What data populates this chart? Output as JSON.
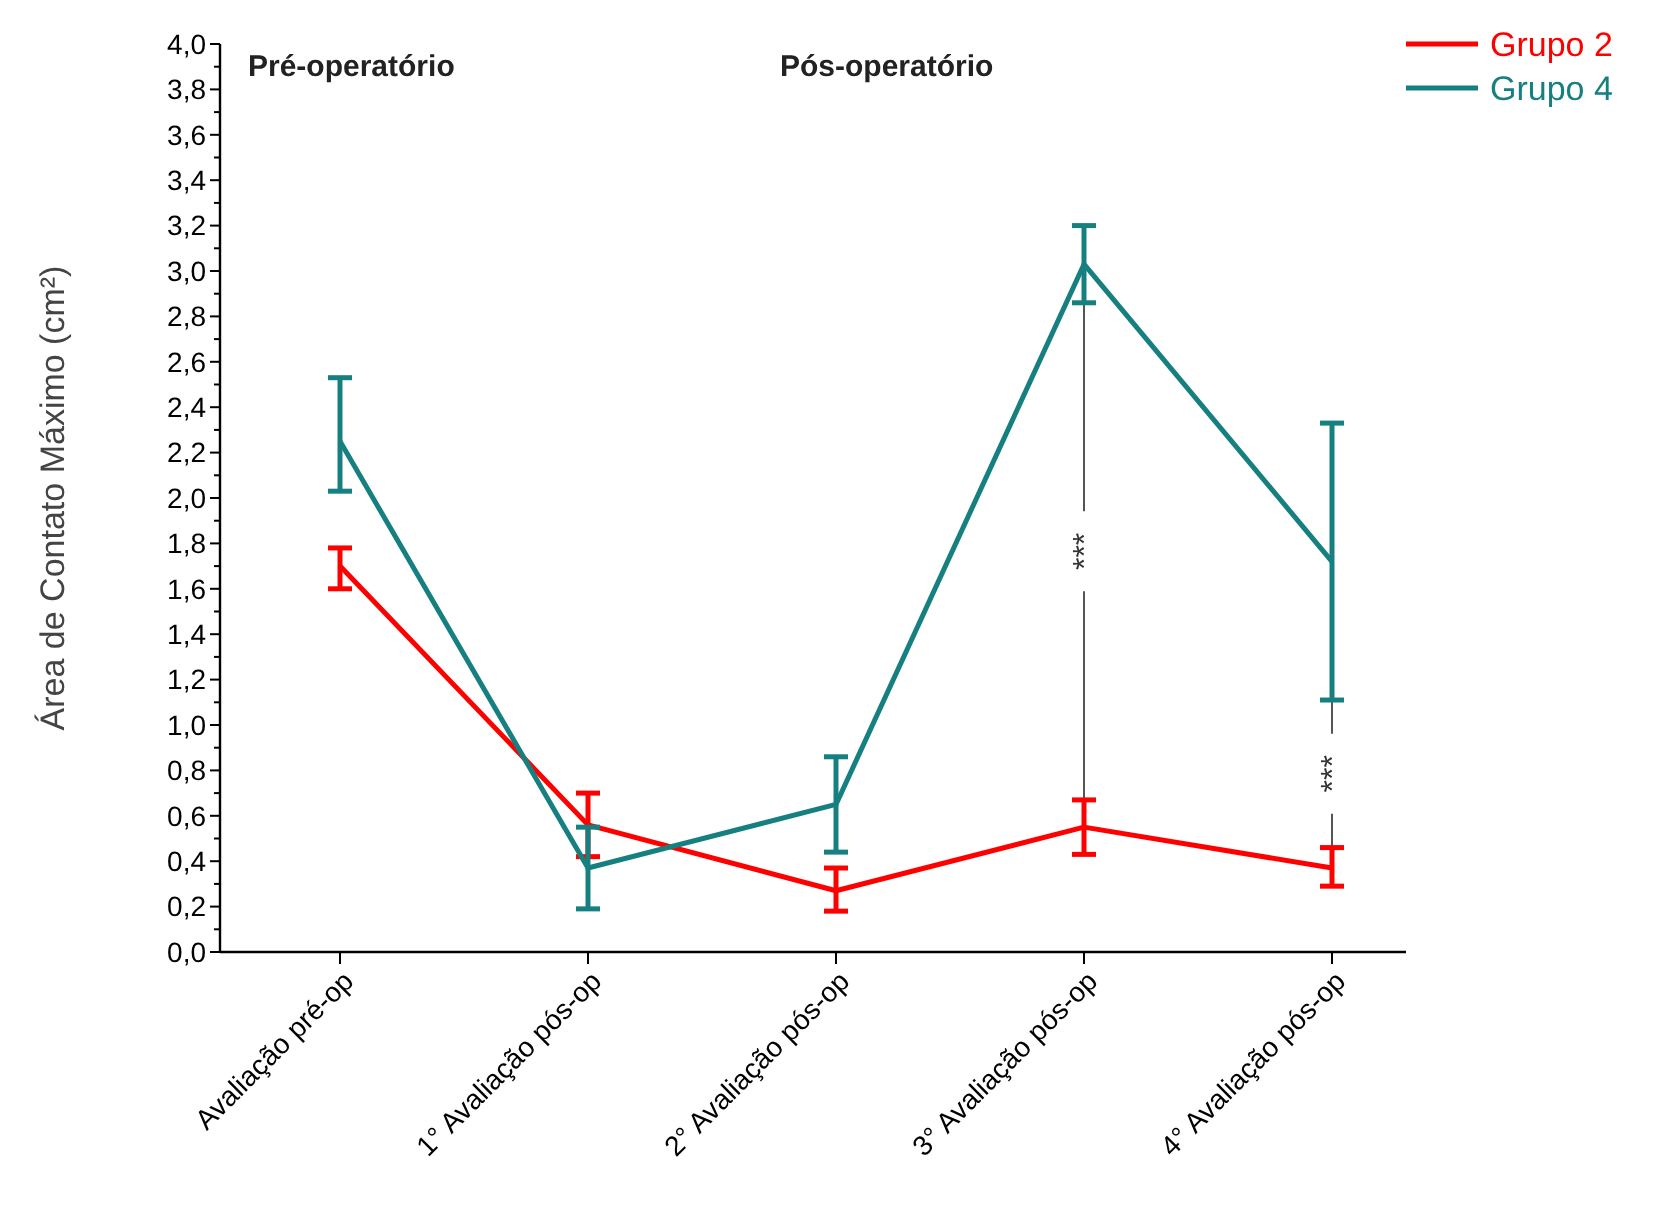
{
  "chart_data": {
    "type": "line",
    "ylabel": "Área de Contato Máximo (cm²)",
    "categories": [
      "Avaliação pré-op",
      "1° Avaliação pós-op",
      "2° Avaliação pós-op",
      "3° Avaliação pós-op",
      "4° Avaliação pós-op"
    ],
    "series": [
      {
        "name": "Grupo 2",
        "color": "#ff0000",
        "values": [
          1.7,
          0.56,
          0.27,
          0.55,
          0.37
        ],
        "errors": [
          [
            1.6,
            1.78
          ],
          [
            0.42,
            0.7
          ],
          [
            0.18,
            0.37
          ],
          [
            0.43,
            0.67
          ],
          [
            0.29,
            0.46
          ]
        ]
      },
      {
        "name": "Grupo 4",
        "color": "#168080",
        "values": [
          2.25,
          0.37,
          0.65,
          3.03,
          1.72
        ],
        "errors": [
          [
            2.03,
            2.53
          ],
          [
            0.19,
            0.55
          ],
          [
            0.44,
            0.86
          ],
          [
            2.86,
            3.2
          ],
          [
            1.11,
            2.33
          ]
        ]
      }
    ],
    "ylim": [
      0,
      4
    ],
    "yticks": [
      {
        "value": 0,
        "label": "0,0"
      },
      {
        "value": 0.2,
        "label": "0,2"
      },
      {
        "value": 0.4,
        "label": "0,4"
      },
      {
        "value": 0.6,
        "label": "0,6"
      },
      {
        "value": 0.8,
        "label": "0,8"
      },
      {
        "value": 1,
        "label": "1,0"
      },
      {
        "value": 1.2,
        "label": "1,2"
      },
      {
        "value": 1.4,
        "label": "1,4"
      },
      {
        "value": 1.6,
        "label": "1,6"
      },
      {
        "value": 1.8,
        "label": "1,8"
      },
      {
        "value": 2,
        "label": "2,0"
      },
      {
        "value": 2.2,
        "label": "2,2"
      },
      {
        "value": 2.4,
        "label": "2,4"
      },
      {
        "value": 2.6,
        "label": "2,6"
      },
      {
        "value": 2.8,
        "label": "2,8"
      },
      {
        "value": 3,
        "label": "3,0"
      },
      {
        "value": 3.2,
        "label": "3,2"
      },
      {
        "value": 3.4,
        "label": "3,4"
      },
      {
        "value": 3.6,
        "label": "3,6"
      },
      {
        "value": 3.8,
        "label": "3,8"
      },
      {
        "value": 4,
        "label": "4,0"
      }
    ],
    "annotations": [
      "Pré-operatório",
      "Pós-operatório",
      {
        "text": "***",
        "x": "3° Avaliação pós-op",
        "y": 0.67
      },
      {
        "text": "***",
        "x": "4° Avaliação pós-op",
        "y": 0.46
      }
    ],
    "legend": "top right",
    "marker": "none",
    "line_style": "solid",
    "grid": false
  }
}
